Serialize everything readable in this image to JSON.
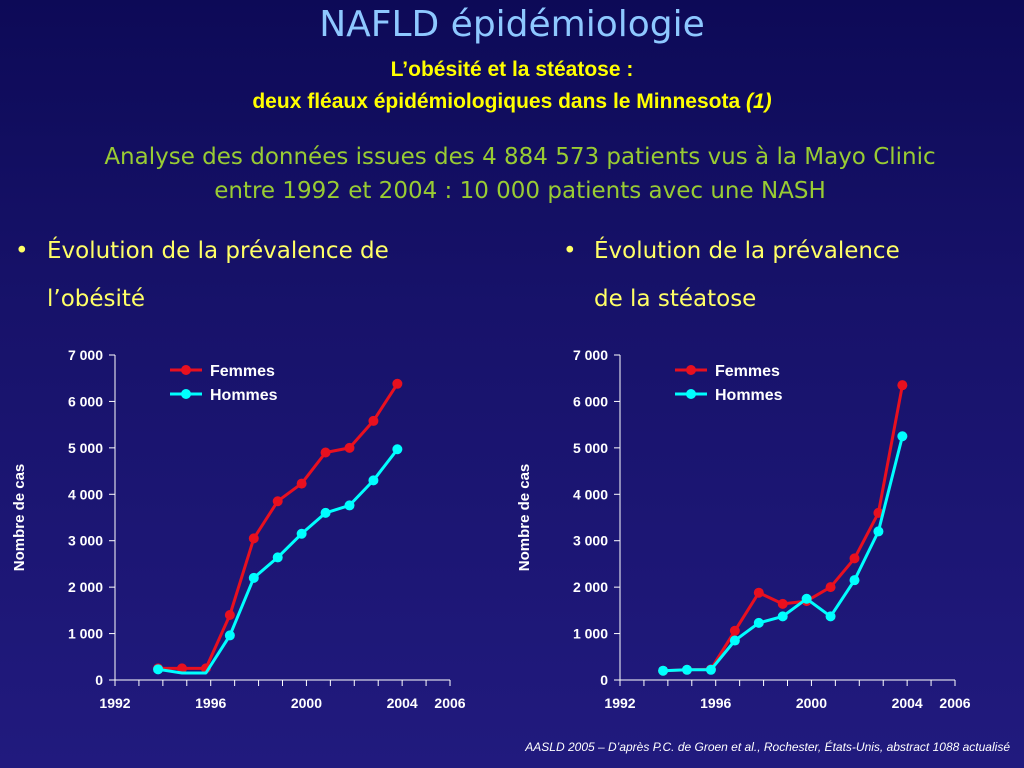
{
  "slide": {
    "title": "NAFLD épidémiologie",
    "subtitle_line1": "L’obésité et la stéatose :",
    "subtitle_line2_main": "deux fléaux épidémiologiques dans le Minnesota ",
    "subtitle_line2_ref": "(1)",
    "intro_line1": "Analyse des données issues des 4 884 573 patients vus à la Mayo Clinic",
    "intro_line2": "entre 1992 et 2004 : 10 000 patients avec une NASH",
    "bullet_glyph": "•",
    "left_bullet_line1": "Évolution de la prévalence de",
    "left_bullet_line2": "l’obésité",
    "right_bullet_line1": "Évolution de la prévalence",
    "right_bullet_line2": "de la stéatose",
    "footer": "AASLD 2005 – D’après P.C. de Groen et al., Rochester, États-Unis, abstract 1088 actualisé"
  },
  "chart_data": [
    {
      "type": "line",
      "title": "",
      "xlabel": "",
      "ylabel": "Nombre de cas",
      "xlim": [
        1992,
        2006
      ],
      "ylim": [
        0,
        7000
      ],
      "x_ticks": [
        1992,
        1996,
        2000,
        2004,
        2006
      ],
      "x_tick_labels": [
        "1992",
        "1996",
        "2000",
        "2004",
        "2006"
      ],
      "y_ticks": [
        0,
        1000,
        2000,
        3000,
        4000,
        5000,
        6000,
        7000
      ],
      "y_tick_labels": [
        "0",
        "1 000",
        "2 000",
        "3 000",
        "4 000",
        "5 000",
        "6 000",
        "7 000"
      ],
      "legend": "top-left",
      "grid": false,
      "series": [
        {
          "name": "Femmes",
          "color": "#e8101f",
          "points": [
            [
              1993.8,
              250
            ],
            [
              1994.8,
              250
            ],
            [
              1995.8,
              250
            ],
            [
              1996.8,
              1400
            ],
            [
              1997.8,
              3050
            ],
            [
              1998.8,
              3850
            ],
            [
              1999.8,
              4230
            ],
            [
              2000.8,
              4900
            ],
            [
              2001.8,
              5000
            ],
            [
              2002.8,
              5580
            ],
            [
              2003.8,
              6380
            ]
          ],
          "markers": true
        },
        {
          "name": "Hommes",
          "color": "#00ffff",
          "points": [
            [
              1993.8,
              230
            ],
            [
              1994.8,
              150
            ],
            [
              1995.8,
              150
            ],
            [
              1996.8,
              960
            ],
            [
              1997.8,
              2200
            ],
            [
              1998.8,
              2640
            ],
            [
              1999.8,
              3150
            ],
            [
              2000.8,
              3600
            ],
            [
              2001.8,
              3760
            ],
            [
              2002.8,
              4300
            ],
            [
              2003.8,
              4970
            ]
          ],
          "markers": true,
          "marker_x": [
            1993.8,
            1996.8,
            1997.8,
            1998.8,
            1999.8,
            2000.8,
            2001.8,
            2002.8,
            2003.8
          ]
        }
      ]
    },
    {
      "type": "line",
      "title": "",
      "xlabel": "",
      "ylabel": "Nombre de cas",
      "xlim": [
        1992,
        2006
      ],
      "ylim": [
        0,
        7000
      ],
      "x_ticks": [
        1992,
        1996,
        2000,
        2004,
        2006
      ],
      "x_tick_labels": [
        "1992",
        "1996",
        "2000",
        "2004",
        "2006"
      ],
      "y_ticks": [
        0,
        1000,
        2000,
        3000,
        4000,
        5000,
        6000,
        7000
      ],
      "y_tick_labels": [
        "0",
        "1 000",
        "2 000",
        "3 000",
        "4 000",
        "5 000",
        "6 000",
        "7 000"
      ],
      "legend": "top-left",
      "grid": false,
      "series": [
        {
          "name": "Femmes",
          "color": "#e8101f",
          "points": [
            [
              1993.8,
              200
            ],
            [
              1994.8,
              220
            ],
            [
              1995.8,
              230
            ],
            [
              1996.8,
              1060
            ],
            [
              1997.8,
              1880
            ],
            [
              1998.8,
              1640
            ],
            [
              1999.8,
              1700
            ],
            [
              2000.8,
              2000
            ],
            [
              2001.8,
              2620
            ],
            [
              2002.8,
              3600
            ],
            [
              2003.8,
              6350
            ]
          ],
          "markers": true
        },
        {
          "name": "Hommes",
          "color": "#00ffff",
          "points": [
            [
              1993.8,
              200
            ],
            [
              1994.8,
              220
            ],
            [
              1995.8,
              220
            ],
            [
              1996.8,
              850
            ],
            [
              1997.8,
              1230
            ],
            [
              1998.8,
              1370
            ],
            [
              1999.8,
              1750
            ],
            [
              2000.8,
              1370
            ],
            [
              2001.8,
              2150
            ],
            [
              2002.8,
              3200
            ],
            [
              2003.8,
              5250
            ]
          ],
          "markers": true
        }
      ]
    }
  ]
}
